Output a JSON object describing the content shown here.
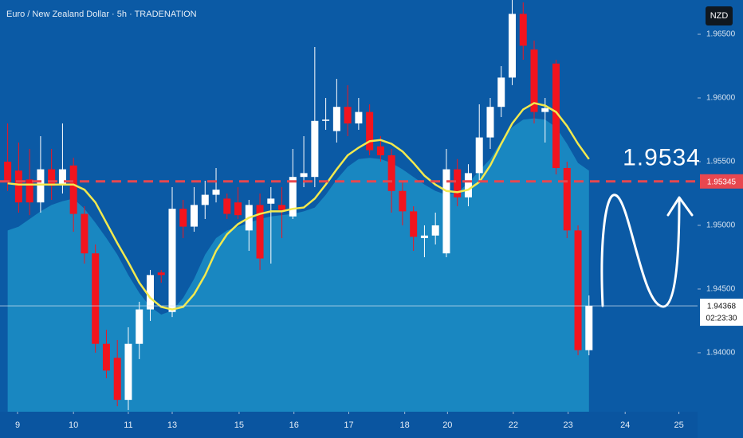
{
  "chart_data": {
    "type": "candlestick",
    "title": "Euro / New Zealand Dollar · 5h · TRADENATION",
    "currency": "NZD",
    "xlim": [
      -0.7,
      62.9
    ],
    "ylim": [
      1.93537,
      1.96769
    ],
    "yticks": [
      {
        "value": 1.94,
        "label": "1.94000"
      },
      {
        "value": 1.945,
        "label": "1.94500"
      },
      {
        "value": 1.95,
        "label": "1.95000"
      },
      {
        "value": 1.955,
        "label": "1.95500"
      },
      {
        "value": 1.96,
        "label": "1.96000"
      },
      {
        "value": 1.965,
        "label": "1.96500"
      }
    ],
    "xticks": [
      {
        "value": 0.9,
        "label": "9"
      },
      {
        "value": 6,
        "label": "10"
      },
      {
        "value": 11,
        "label": "11"
      },
      {
        "value": 15,
        "label": "13"
      },
      {
        "value": 21.1,
        "label": "15"
      },
      {
        "value": 26.1,
        "label": "16"
      },
      {
        "value": 31.1,
        "label": "17"
      },
      {
        "value": 36.2,
        "label": "18"
      },
      {
        "value": 40.1,
        "label": "20"
      },
      {
        "value": 46.1,
        "label": "22"
      },
      {
        "value": 51.1,
        "label": "23"
      },
      {
        "value": 56.3,
        "label": "24"
      },
      {
        "value": 61.2,
        "label": "25"
      }
    ],
    "up_color": "#ffffff",
    "down_color": "#f2141e",
    "open": [
      1.955,
      1.9543,
      1.9536,
      1.9518,
      1.9544,
      1.9532,
      1.9547,
      1.9509,
      1.9478,
      1.9407,
      1.9396,
      1.9363,
      1.9407,
      1.9434,
      1.9463,
      1.9432,
      1.9513,
      1.9499,
      1.9516,
      1.9524,
      1.9521,
      1.9518,
      1.9496,
      1.9516,
      1.9517,
      1.9516,
      1.9507,
      1.9538,
      1.9538,
      1.9582,
      1.9574,
      1.9593,
      1.958,
      1.9589,
      1.9562,
      1.9555,
      1.9527,
      1.9511,
      1.949,
      1.9492,
      1.9478,
      1.9544,
      1.9522,
      1.9541,
      1.9569,
      1.9593,
      1.9616,
      1.9666,
      1.9638,
      1.9589,
      1.9627,
      1.9545,
      1.9496,
      1.9402
    ],
    "high": [
      1.958,
      1.9565,
      1.956,
      1.957,
      1.956,
      1.958,
      1.9553,
      1.9515,
      1.9485,
      1.9418,
      1.941,
      1.942,
      1.944,
      1.9465,
      1.9465,
      1.953,
      1.952,
      1.953,
      1.9535,
      1.9545,
      1.9525,
      1.953,
      1.952,
      1.9525,
      1.953,
      1.953,
      1.956,
      1.957,
      1.964,
      1.96,
      1.9615,
      1.961,
      1.96,
      1.9595,
      1.957,
      1.956,
      1.9535,
      1.9515,
      1.95,
      1.951,
      1.956,
      1.9552,
      1.9548,
      1.9595,
      1.96,
      1.9625,
      1.9677,
      1.9675,
      1.9645,
      1.96,
      1.963,
      1.955,
      1.95,
      1.9445
    ],
    "low": [
      1.9527,
      1.951,
      1.9508,
      1.951,
      1.952,
      1.9525,
      1.9495,
      1.947,
      1.94,
      1.938,
      1.9358,
      1.9355,
      1.9395,
      1.9425,
      1.9455,
      1.9428,
      1.949,
      1.9495,
      1.9505,
      1.9518,
      1.9505,
      1.9505,
      1.948,
      1.9465,
      1.947,
      1.949,
      1.9505,
      1.953,
      1.953,
      1.9575,
      1.9565,
      1.957,
      1.9575,
      1.9555,
      1.955,
      1.951,
      1.95,
      1.948,
      1.9475,
      1.9485,
      1.9475,
      1.9515,
      1.9515,
      1.9535,
      1.956,
      1.9585,
      1.961,
      1.963,
      1.958,
      1.9565,
      1.954,
      1.949,
      1.9398,
      1.9398
    ],
    "close": [
      1.9534,
      1.9518,
      1.9518,
      1.9544,
      1.9531,
      1.9544,
      1.9509,
      1.9478,
      1.9407,
      1.9386,
      1.9363,
      1.9407,
      1.9434,
      1.9461,
      1.9461,
      1.9513,
      1.9499,
      1.9516,
      1.9524,
      1.9528,
      1.9509,
      1.9508,
      1.9516,
      1.9474,
      1.9521,
      1.9512,
      1.9538,
      1.9541,
      1.9582,
      1.9583,
      1.9593,
      1.958,
      1.9589,
      1.9559,
      1.9555,
      1.9527,
      1.9511,
      1.9491,
      1.9492,
      1.95,
      1.9544,
      1.9522,
      1.9541,
      1.9569,
      1.9593,
      1.9616,
      1.9666,
      1.9641,
      1.9589,
      1.9592,
      1.9545,
      1.9496,
      1.9402,
      1.94368
    ],
    "ma": {
      "color": "#f2e94e",
      "values": [
        1.9533,
        1.9532,
        1.9532,
        1.9532,
        1.9532,
        1.9532,
        1.9532,
        1.9528,
        1.9518,
        1.9502,
        1.9486,
        1.9471,
        1.9455,
        1.9443,
        1.9436,
        1.9434,
        1.9436,
        1.9446,
        1.9461,
        1.948,
        1.9493,
        1.9501,
        1.9506,
        1.9509,
        1.9511,
        1.9511,
        1.9513,
        1.9514,
        1.9521,
        1.9532,
        1.9544,
        1.9555,
        1.9561,
        1.9566,
        1.9567,
        1.9564,
        1.9558,
        1.9549,
        1.9539,
        1.9532,
        1.9527,
        1.9526,
        1.9528,
        1.9534,
        1.9547,
        1.9564,
        1.958,
        1.9591,
        1.9596,
        1.9594,
        1.9589,
        1.9578,
        1.9564,
        1.9552
      ]
    },
    "area": {
      "color": "#1b8cc4",
      "values": [
        1.9496,
        1.9499,
        1.9505,
        1.9511,
        1.9516,
        1.9519,
        1.9521,
        1.9513,
        1.9502,
        1.949,
        1.9477,
        1.9461,
        1.9447,
        1.9436,
        1.943,
        1.9433,
        1.9443,
        1.9458,
        1.9477,
        1.949,
        1.9496,
        1.9499,
        1.9502,
        1.9505,
        1.9507,
        1.9508,
        1.9509,
        1.9511,
        1.9514,
        1.9524,
        1.9536,
        1.9546,
        1.9552,
        1.9553,
        1.9552,
        1.9549,
        1.9544,
        1.9538,
        1.9532,
        1.9527,
        1.9524,
        1.9526,
        1.9533,
        1.9543,
        1.9552,
        1.9566,
        1.9577,
        1.9583,
        1.9584,
        1.9583,
        1.9577,
        1.9564,
        1.9549,
        1.9543
      ]
    },
    "level": {
      "value": 1.95345,
      "label": "1.95345",
      "color": "#e8474f",
      "annotation": "1.9534"
    },
    "last": {
      "value": 1.94368,
      "label": "1.94368",
      "countdown": "02:23:30"
    }
  }
}
